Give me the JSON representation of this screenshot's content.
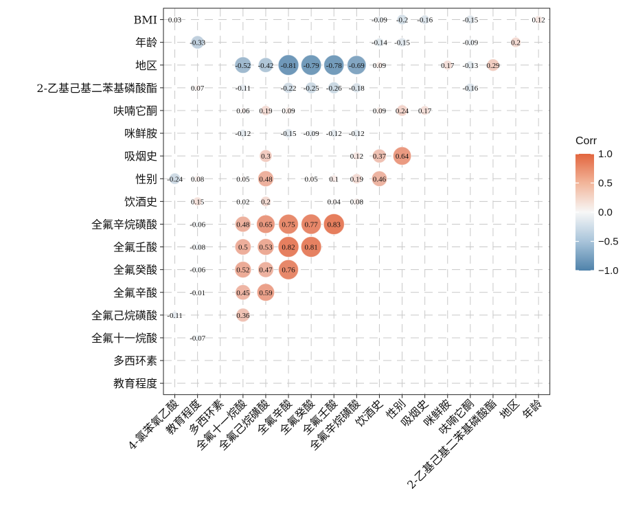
{
  "chart_data": {
    "type": "heatmap",
    "title": "",
    "xlabel": "",
    "ylabel": "",
    "x_categories": [
      "4-氯苯氧乙酸",
      "教育程度",
      "多西环素",
      "全氟十一烷酸",
      "全氟己烷磺酸",
      "全氟辛酸",
      "全氟癸酸",
      "全氟壬酸",
      "全氟辛烷磺酸",
      "饮酒史",
      "性别",
      "吸烟史",
      "咪鲜胺",
      "呋喃它酮",
      "2-乙基己基二苯基磷酸酯",
      "地区",
      "年龄"
    ],
    "y_categories": [
      "BMI",
      "年龄",
      "地区",
      "2-乙基己基二苯基磷酸酯",
      "呋喃它酮",
      "咪鲜胺",
      "吸烟史",
      "性别",
      "饮酒史",
      "全氟辛烷磺酸",
      "全氟壬酸",
      "全氟癸酸",
      "全氟辛酸",
      "全氟己烷磺酸",
      "全氟十一烷酸",
      "多西环素",
      "教育程度"
    ],
    "cells": [
      {
        "row": "BMI",
        "values": [
          0.03,
          null,
          null,
          null,
          null,
          null,
          null,
          null,
          null,
          -0.09,
          -0.2,
          -0.16,
          null,
          -0.15,
          null,
          null,
          0.12
        ]
      },
      {
        "row": "年龄",
        "values": [
          null,
          -0.33,
          null,
          null,
          null,
          null,
          null,
          null,
          null,
          -0.14,
          -0.15,
          null,
          null,
          -0.09,
          null,
          0.2,
          null
        ]
      },
      {
        "row": "地区",
        "values": [
          null,
          null,
          null,
          -0.52,
          -0.42,
          -0.81,
          -0.79,
          -0.78,
          -0.69,
          0.09,
          null,
          null,
          0.17,
          -0.13,
          0.29,
          null,
          null
        ]
      },
      {
        "row": "2-乙基己基二苯基磷酸酯",
        "values": [
          null,
          0.07,
          null,
          -0.11,
          null,
          -0.22,
          -0.25,
          -0.26,
          -0.18,
          null,
          null,
          null,
          null,
          -0.16,
          null,
          null,
          null
        ]
      },
      {
        "row": "呋喃它酮",
        "values": [
          null,
          null,
          null,
          0.06,
          0.19,
          0.09,
          null,
          null,
          null,
          0.09,
          0.24,
          0.17,
          null,
          null,
          null,
          null,
          null
        ]
      },
      {
        "row": "咪鲜胺",
        "values": [
          null,
          null,
          null,
          -0.12,
          null,
          -0.15,
          -0.09,
          -0.12,
          -0.12,
          null,
          null,
          null,
          null,
          null,
          null,
          null,
          null
        ]
      },
      {
        "row": "吸烟史",
        "values": [
          null,
          null,
          null,
          null,
          0.3,
          null,
          null,
          null,
          0.12,
          0.37,
          0.64,
          null,
          null,
          null,
          null,
          null,
          null
        ]
      },
      {
        "row": "性别",
        "values": [
          -0.24,
          0.08,
          null,
          0.05,
          0.48,
          null,
          0.05,
          0.1,
          0.19,
          0.46,
          null,
          null,
          null,
          null,
          null,
          null,
          null
        ]
      },
      {
        "row": "饮酒史",
        "values": [
          null,
          0.15,
          null,
          0.02,
          0.2,
          null,
          null,
          0.04,
          0.08,
          null,
          null,
          null,
          null,
          null,
          null,
          null,
          null
        ]
      },
      {
        "row": "全氟辛烷磺酸",
        "values": [
          null,
          -0.06,
          null,
          0.48,
          0.65,
          0.75,
          0.77,
          0.83,
          null,
          null,
          null,
          null,
          null,
          null,
          null,
          null,
          null
        ]
      },
      {
        "row": "全氟壬酸",
        "values": [
          null,
          -0.08,
          null,
          0.5,
          0.53,
          0.82,
          0.81,
          null,
          null,
          null,
          null,
          null,
          null,
          null,
          null,
          null,
          null
        ]
      },
      {
        "row": "全氟癸酸",
        "values": [
          null,
          -0.06,
          null,
          0.52,
          0.47,
          0.76,
          null,
          null,
          null,
          null,
          null,
          null,
          null,
          null,
          null,
          null,
          null
        ]
      },
      {
        "row": "全氟辛酸",
        "values": [
          null,
          -0.01,
          null,
          0.45,
          0.59,
          null,
          null,
          null,
          null,
          null,
          null,
          null,
          null,
          null,
          null,
          null,
          null
        ]
      },
      {
        "row": "全氟己烷磺酸",
        "values": [
          -0.11,
          null,
          null,
          0.36,
          null,
          null,
          null,
          null,
          null,
          null,
          null,
          null,
          null,
          null,
          null,
          null,
          null
        ]
      },
      {
        "row": "全氟十一烷酸",
        "values": [
          null,
          -0.07,
          null,
          null,
          null,
          null,
          null,
          null,
          null,
          null,
          null,
          null,
          null,
          null,
          null,
          null,
          null
        ]
      },
      {
        "row": "多西环素",
        "values": [
          null,
          null,
          null,
          null,
          null,
          null,
          null,
          null,
          null,
          null,
          null,
          null,
          null,
          null,
          null,
          null,
          null
        ]
      },
      {
        "row": "教育程度",
        "values": [
          null,
          null,
          null,
          null,
          null,
          null,
          null,
          null,
          null,
          null,
          null,
          null,
          null,
          null,
          null,
          null,
          null
        ]
      }
    ],
    "value_range": [
      -1.0,
      1.0
    ],
    "grid": true,
    "legend": {
      "title": "Corr",
      "position": "right",
      "ticks": [
        "1.0",
        "0.5",
        "0.0",
        "−0.5",
        "−1.0"
      ],
      "tick_values": [
        1.0,
        0.5,
        0.0,
        -0.5,
        -1.0
      ]
    },
    "colors": {
      "negative": "#4f82aa",
      "zero": "#f7f7f7",
      "positive": "#e2653e",
      "grid": "#c8c8c8",
      "axis": "#222222"
    }
  }
}
